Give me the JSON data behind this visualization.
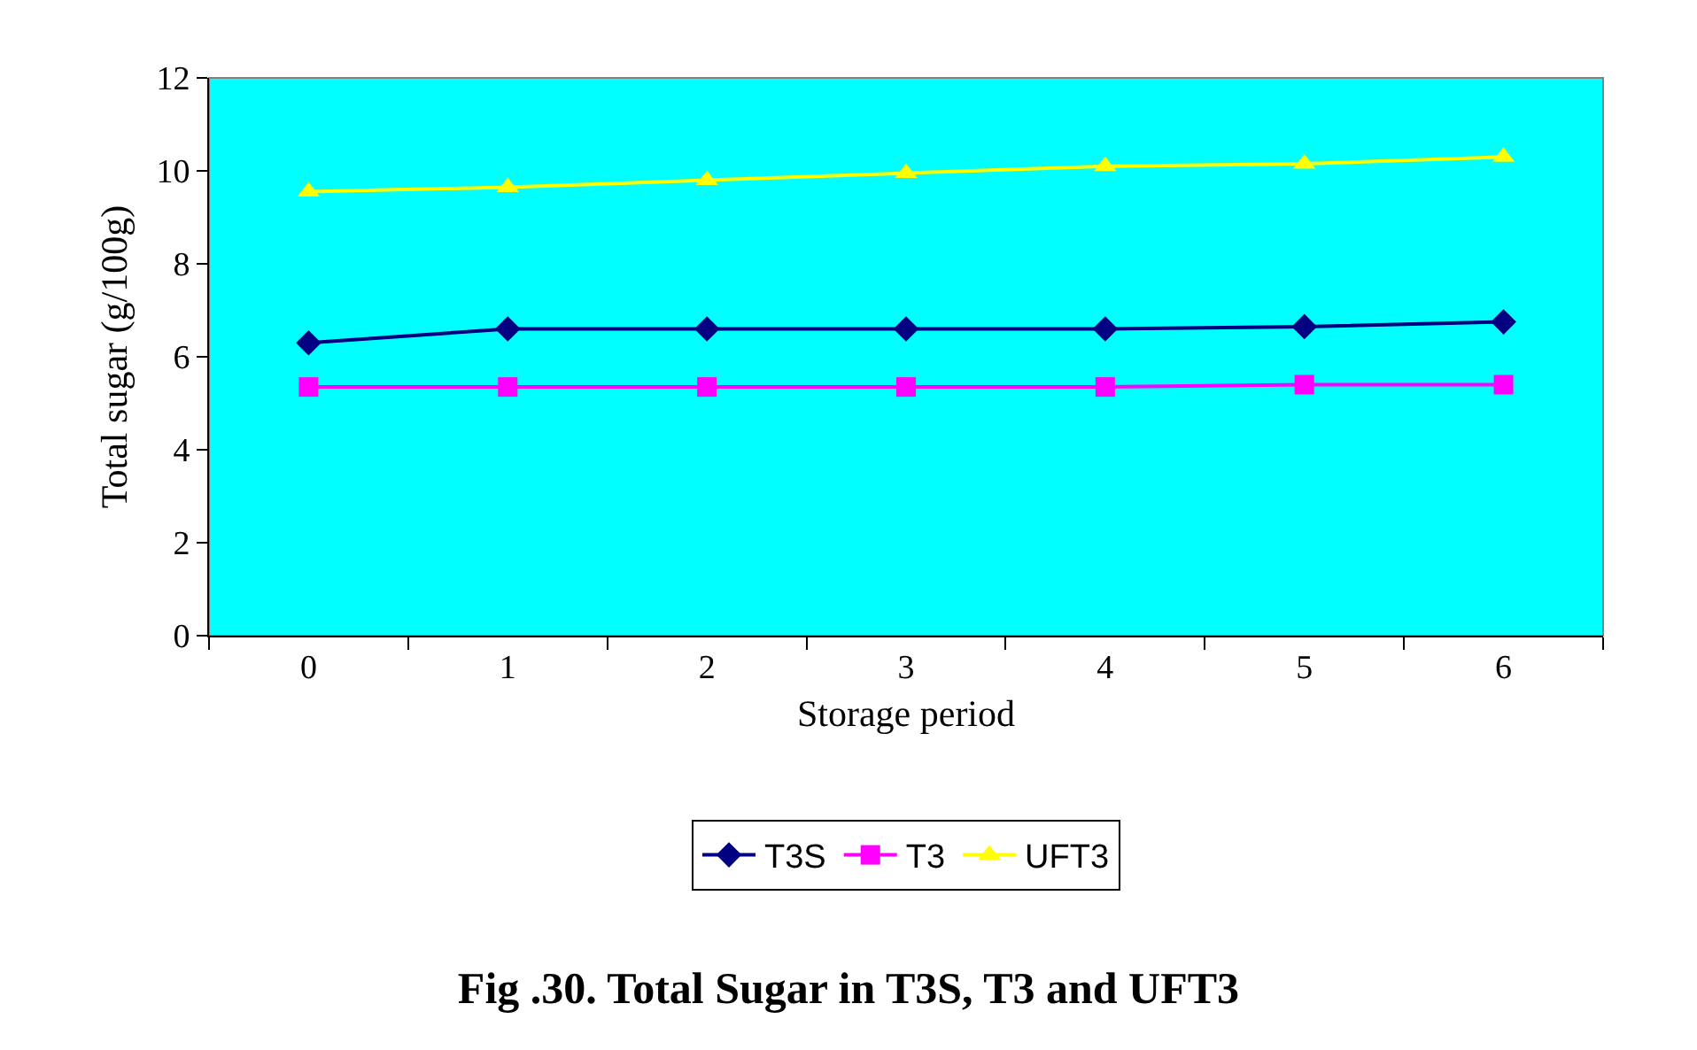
{
  "chart_data": {
    "type": "line",
    "title": "Fig .30. Total Sugar in T3S, T3 and UFT3",
    "xlabel": "Storage period",
    "ylabel": "Total sugar (g/100g)",
    "categories": [
      "0",
      "1",
      "2",
      "3",
      "4",
      "5",
      "6"
    ],
    "series": [
      {
        "name": "T3S",
        "color": "#000080",
        "marker": "diamond",
        "values": [
          6.3,
          6.6,
          6.6,
          6.6,
          6.6,
          6.65,
          6.75
        ]
      },
      {
        "name": "T3",
        "color": "#ff00ff",
        "marker": "square",
        "values": [
          5.35,
          5.35,
          5.35,
          5.35,
          5.35,
          5.4,
          5.4
        ]
      },
      {
        "name": "UFT3",
        "color": "#ffff00",
        "marker": "triangle",
        "values": [
          9.55,
          9.65,
          9.8,
          9.95,
          10.1,
          10.15,
          10.3
        ]
      }
    ],
    "ylim": [
      0,
      12
    ],
    "yticks": [
      0,
      2,
      4,
      6,
      8,
      10,
      12
    ],
    "grid": false,
    "legend": "bottom",
    "line_style": "solid"
  }
}
